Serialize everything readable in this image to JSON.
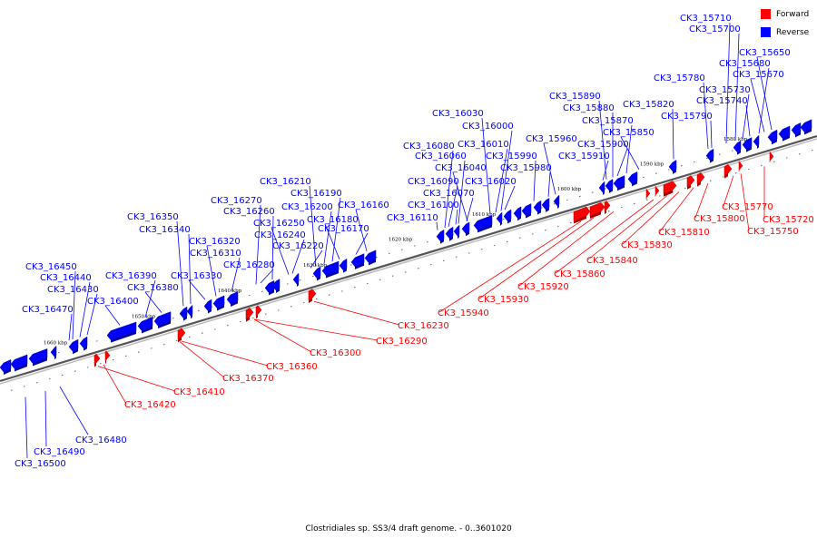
{
  "caption": "Clostridiales sp. SS3/4 draft genome. - 0..3601020",
  "legend": {
    "forward_label": "Forward",
    "reverse_label": "Reverse",
    "forward_color": "#ff0000",
    "reverse_color": "#0000ff"
  },
  "colors": {
    "forward": "#ff0000",
    "reverse": "#0000ff",
    "axis": "#888888",
    "ruler_label": "#000000"
  },
  "ruler": [
    {
      "label": "1660 kbp",
      "pos": 1660
    },
    {
      "label": "1650 kbp",
      "pos": 1650
    },
    {
      "label": "1640 kbp",
      "pos": 1640
    },
    {
      "label": "1630 kbp",
      "pos": 1630
    },
    {
      "label": "1620 kbp",
      "pos": 1620
    },
    {
      "label": "1610 kbp",
      "pos": 1610
    },
    {
      "label": "1600 kbp",
      "pos": 1600
    },
    {
      "label": "1590 kbp",
      "pos": 1590
    },
    {
      "label": "1580 kbp",
      "pos": 1580
    }
  ],
  "reverse_genes": [
    "CK3_15710",
    "CK3_15700",
    "CK3_15650",
    "CK3_15680",
    "CK3_15670",
    "CK3_15780",
    "CK3_15730",
    "CK3_15740",
    "CK3_15820",
    "CK3_15790",
    "CK3_15890",
    "CK3_15880",
    "CK3_15870",
    "CK3_15850",
    "CK3_15900",
    "CK3_15910",
    "CK3_15960",
    "CK3_15990",
    "CK3_15980",
    "CK3_16030",
    "CK3_16000",
    "CK3_16010",
    "CK3_16080",
    "CK3_16060",
    "CK3_16040",
    "CK3_16090",
    "CK3_16020",
    "CK3_16070",
    "CK3_16100",
    "CK3_16110",
    "CK3_16210",
    "CK3_16190",
    "CK3_16270",
    "CK3_16200",
    "CK3_16160",
    "CK3_16260",
    "CK3_16180",
    "CK3_16250",
    "CK3_16170",
    "CK3_16240",
    "CK3_16220",
    "CK3_16350",
    "CK3_16340",
    "CK3_16320",
    "CK3_16310",
    "CK3_16280",
    "CK3_16390",
    "CK3_16330",
    "CK3_16380",
    "CK3_16400",
    "CK3_16450",
    "CK3_16440",
    "CK3_16430",
    "CK3_16470"
  ],
  "forward_genes": [
    "CK3_15770",
    "CK3_15720",
    "CK3_15800",
    "CK3_15750",
    "CK3_15810",
    "CK3_15830",
    "CK3_15840",
    "CK3_15860",
    "CK3_15920",
    "CK3_15930",
    "CK3_15940",
    "CK3_16230",
    "CK3_16290",
    "CK3_16300",
    "CK3_16360",
    "CK3_16370",
    "CK3_16410",
    "CK3_16420"
  ],
  "below_genes": [
    "CK3_16480",
    "CK3_16490",
    "CK3_16500"
  ]
}
